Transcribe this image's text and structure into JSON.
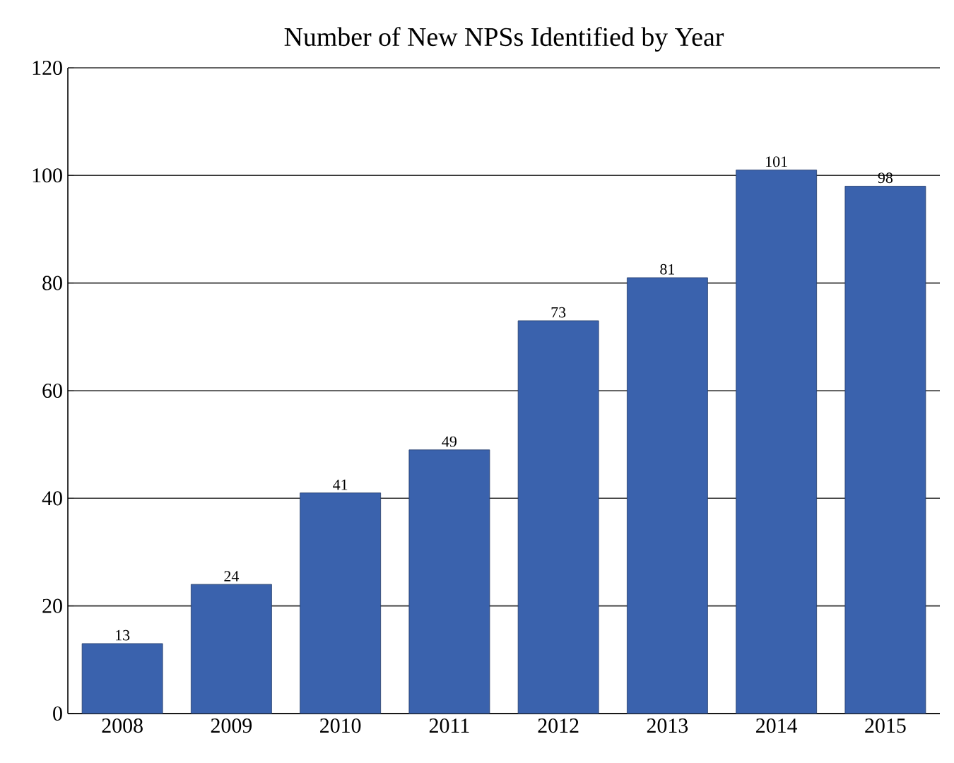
{
  "chart_data": {
    "type": "bar",
    "title": "Number of New NPSs Identified by Year",
    "categories": [
      "2008",
      "2009",
      "2010",
      "2011",
      "2012",
      "2013",
      "2014",
      "2015"
    ],
    "values": [
      13,
      24,
      41,
      49,
      73,
      81,
      101,
      98
    ],
    "color": "#3a62ad",
    "ylim": [
      0,
      120
    ],
    "yticks": [
      0,
      20,
      40,
      60,
      80,
      100,
      120
    ],
    "grid": "y",
    "data_labels": true
  }
}
